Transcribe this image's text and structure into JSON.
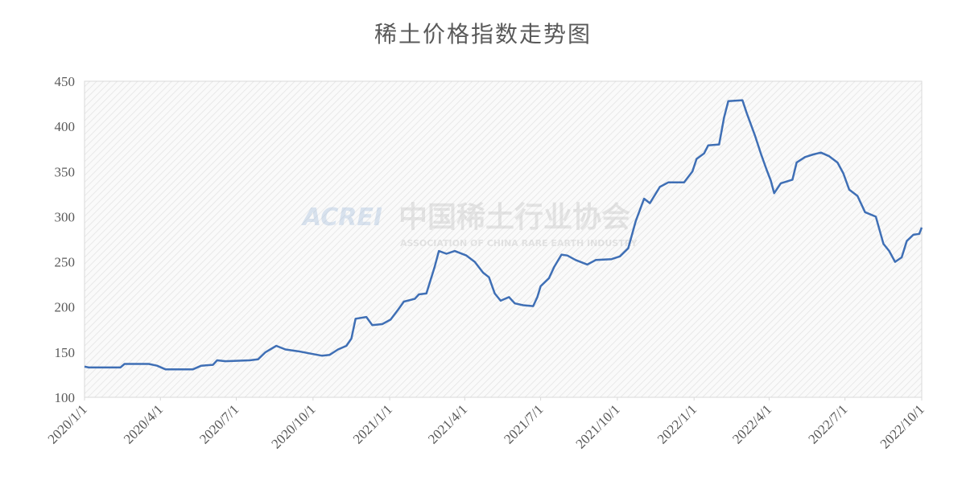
{
  "chart_data": {
    "type": "line",
    "title": "稀土价格指数走势图",
    "watermark": {
      "logo": "ACREI",
      "name": "中国稀土行业协会",
      "english": "ASSOCIATION OF CHINA RARE EARTH INDUSTRY"
    },
    "x": [
      "2020/1/1",
      "2020/1/6",
      "2020/2/13",
      "2020/2/18",
      "2020/3/18",
      "2020/3/28",
      "2020/4/7",
      "2020/5/10",
      "2020/5/20",
      "2020/6/3",
      "2020/6/8",
      "2020/6/18",
      "2020/7/17",
      "2020/7/27",
      "2020/8/5",
      "2020/8/18",
      "2020/8/29",
      "2020/9/13",
      "2020/10/12",
      "2020/10/21",
      "2020/10/31",
      "2020/11/10",
      "2020/11/16",
      "2020/11/21",
      "2020/12/4",
      "2020/12/11",
      "2020/12/23",
      "2021/1/2",
      "2021/1/11",
      "2021/1/18",
      "2021/1/31",
      "2021/2/5",
      "2021/2/14",
      "2021/2/24",
      "2021/3/1",
      "2021/3/10",
      "2021/3/20",
      "2021/4/3",
      "2021/4/13",
      "2021/4/23",
      "2021/4/30",
      "2021/5/7",
      "2021/5/14",
      "2021/5/24",
      "2021/5/31",
      "2021/6/10",
      "2021/6/22",
      "2021/6/27",
      "2021/7/1",
      "2021/7/11",
      "2021/7/17",
      "2021/7/26",
      "2021/8/2",
      "2021/8/12",
      "2021/8/26",
      "2021/9/5",
      "2021/9/24",
      "2021/10/4",
      "2021/10/14",
      "2021/10/23",
      "2021/11/2",
      "2021/11/9",
      "2021/11/21",
      "2021/12/1",
      "2021/12/20",
      "2021/12/30",
      "2022/1/4",
      "2022/1/13",
      "2022/1/18",
      "2022/1/31",
      "2022/2/6",
      "2022/2/11",
      "2022/2/28",
      "2022/3/5",
      "2022/3/15",
      "2022/3/22",
      "2022/3/29",
      "2022/4/3",
      "2022/4/7",
      "2022/4/15",
      "2022/4/29",
      "2022/5/4",
      "2022/5/14",
      "2022/5/24",
      "2022/6/2",
      "2022/6/12",
      "2022/6/22",
      "2022/6/29",
      "2022/7/6",
      "2022/7/16",
      "2022/7/25",
      "2022/8/7",
      "2022/8/16",
      "2022/8/23",
      "2022/8/30",
      "2022/9/7",
      "2022/9/13",
      "2022/9/21",
      "2022/9/28",
      "2022/10/1"
    ],
    "series": [
      {
        "name": "稀土价格指数",
        "color": "#3f6fb5",
        "values": [
          134,
          133,
          133,
          137,
          137,
          135,
          131,
          131,
          135,
          136,
          141,
          140,
          141,
          142,
          150,
          157,
          153,
          151,
          146,
          147,
          153,
          157,
          165,
          187,
          189,
          180,
          181,
          186,
          197,
          206,
          209,
          214,
          215,
          245,
          262,
          259,
          262,
          257,
          250,
          238,
          233,
          215,
          207,
          211,
          204,
          202,
          201,
          211,
          223,
          232,
          244,
          258,
          257,
          252,
          247,
          252,
          253,
          256,
          265,
          295,
          320,
          315,
          333,
          338,
          338,
          350,
          364,
          370,
          379,
          380,
          410,
          428,
          429,
          415,
          390,
          370,
          352,
          340,
          326,
          337,
          341,
          360,
          366,
          369,
          371,
          367,
          360,
          348,
          330,
          323,
          305,
          300,
          270,
          262,
          250,
          255,
          273,
          280,
          281,
          288
        ]
      }
    ],
    "xlim": [
      "2020/1/1",
      "2022/10/1"
    ],
    "xticks": [
      "2020/1/1",
      "2020/4/1",
      "2020/7/1",
      "2020/10/1",
      "2021/1/1",
      "2021/4/1",
      "2021/7/1",
      "2021/10/1",
      "2022/1/1",
      "2022/4/1",
      "2022/7/1",
      "2022/10/1"
    ],
    "ylim": [
      100,
      450
    ],
    "yticks": [
      100,
      150,
      200,
      250,
      300,
      350,
      400,
      450
    ],
    "grid": false
  }
}
